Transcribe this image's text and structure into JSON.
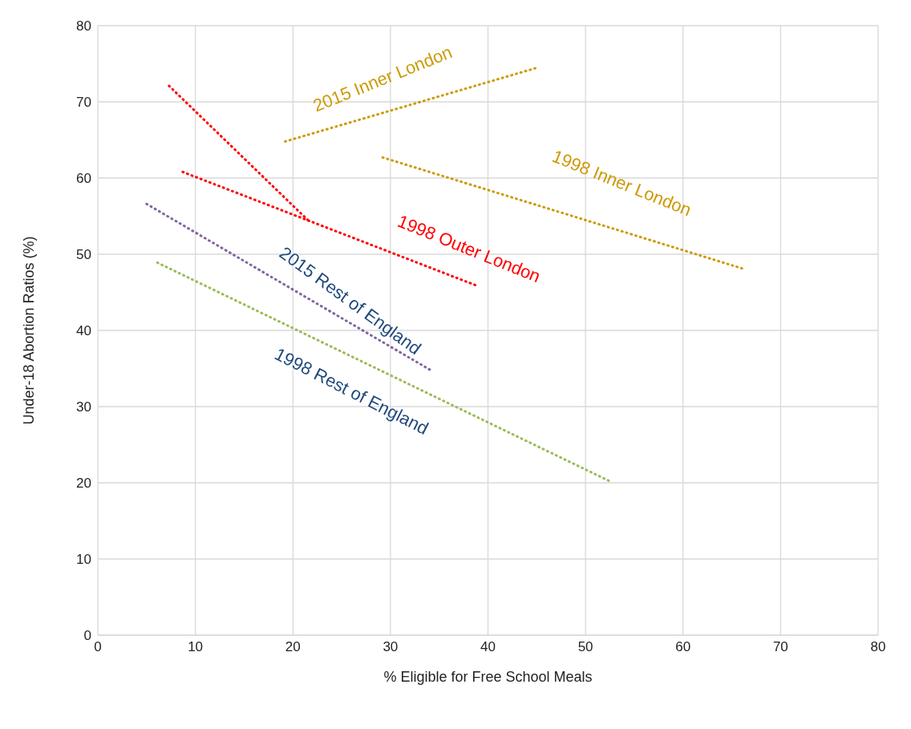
{
  "chart_data": {
    "type": "line",
    "xlabel": "% Eligible for Free School Meals",
    "ylabel": "Under-18 Abortion Ratios (%)",
    "xlim": [
      0,
      80
    ],
    "xticks": [
      0,
      10,
      20,
      30,
      40,
      50,
      60,
      70,
      80
    ],
    "ylim": [
      0,
      80
    ],
    "yticks": [
      0,
      10,
      20,
      30,
      40,
      50,
      60,
      70,
      80
    ],
    "grid": true,
    "legend": false,
    "marker": "none",
    "line_style": "dotted",
    "series": [
      {
        "name": "2015 Inner London",
        "color": "#cc9a06",
        "x": [
          19.2,
          45.1
        ],
        "values": [
          64.8,
          74.5
        ]
      },
      {
        "name": "1998 Inner London",
        "color": "#cc9a06",
        "x": [
          29.2,
          66.4
        ],
        "values": [
          62.7,
          48.0
        ]
      },
      {
        "color": "#ff0000",
        "x": [
          7.3,
          21.6
        ],
        "values": [
          72.1,
          54.4
        ]
      },
      {
        "name": "1998 Outer London",
        "color": "#ff0000",
        "x": [
          8.7,
          38.8
        ],
        "values": [
          60.8,
          45.9
        ]
      },
      {
        "name": "2015 Rest of England",
        "color": "#8064a2",
        "x": [
          5.0,
          34.1
        ],
        "values": [
          56.6,
          34.8
        ]
      },
      {
        "name": "1998 Rest of England",
        "color": "#9bbb59",
        "x": [
          6.1,
          52.5
        ],
        "values": [
          48.9,
          20.2
        ]
      }
    ]
  }
}
